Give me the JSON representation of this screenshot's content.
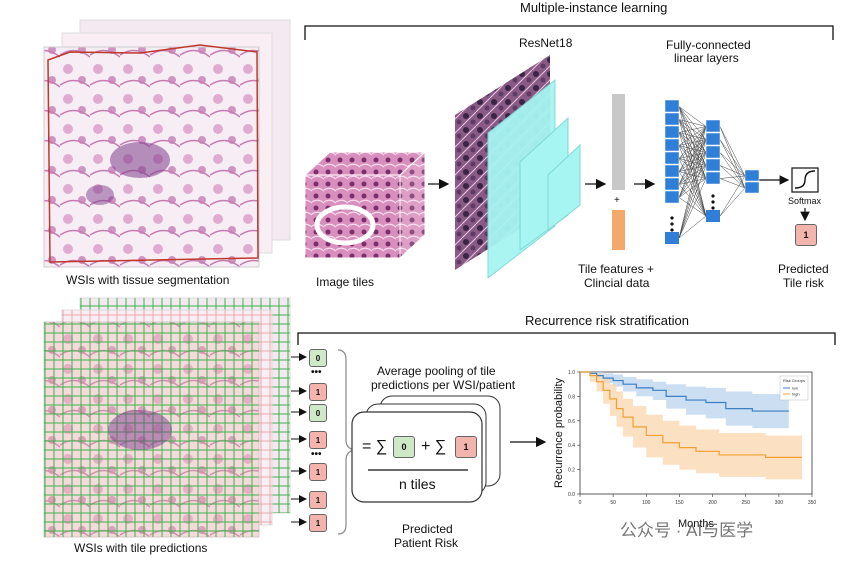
{
  "titles": {
    "mil": "Multiple-instance learning",
    "rrs": "Recurrence risk stratification"
  },
  "labels": {
    "wsi_seg": "WSIs with tissue segmentation",
    "image_tiles": "Image tiles",
    "resnet": "ResNet18",
    "fc_1": "Fully-connected",
    "fc_2": "linear layers",
    "tile_feat_1": "Tile features +",
    "tile_feat_2": "Clincial data",
    "plus": "+",
    "softmax": "Softmax",
    "pred_tile_1": "Predicted",
    "pred_tile_2": "Tile risk",
    "pred_tile_value": "1",
    "wsi_pred": "WSIs with tile predictions",
    "avg_1": "Average pooling of tile",
    "avg_2": "predictions per WSI/patient",
    "formula_eq": "= ∑",
    "formula_plus": "+ ∑",
    "formula_v0": "0",
    "formula_v1": "1",
    "n_tiles": "n tiles",
    "pred_patient_1": "Predicted",
    "pred_patient_2": "Patient Risk",
    "ellipsis": "•••",
    "watermark": "公众号 · AI与医学"
  },
  "tile_values": [
    "0",
    "1",
    "0",
    "1",
    "1",
    "1",
    "1"
  ],
  "colors": {
    "fc_blue": "#2f7fd8",
    "cnn_cyan": "#a6f5f2",
    "feat_gray": "#c8c8c8",
    "clin_orange": "#f4a86a",
    "risk_red": "#f3b4ae",
    "risk_green": "#cfe8c8",
    "km_low": "#3b7fc4",
    "km_high": "#f0a030"
  },
  "chart_data": {
    "type": "line",
    "xlabel": "Months",
    "ylabel": "Recurrence probability",
    "xlim": [
      0,
      350
    ],
    "ylim": [
      0,
      1.0
    ],
    "xticks": [
      "0",
      "50",
      "100",
      "150",
      "200",
      "250",
      "300",
      "350"
    ],
    "yticks": [
      "0.0",
      "0.2",
      "0.4",
      "0.6",
      "0.8",
      "1.0"
    ],
    "legend_title": "Risk Groups",
    "legend_position": "top-right",
    "series": [
      {
        "name": "low",
        "x": [
          0,
          15,
          25,
          35,
          50,
          65,
          85,
          110,
          130,
          160,
          190,
          220,
          260,
          315
        ],
        "y": [
          1.0,
          0.99,
          0.97,
          0.95,
          0.93,
          0.9,
          0.87,
          0.85,
          0.8,
          0.77,
          0.75,
          0.7,
          0.68,
          0.68
        ],
        "ci_low": [
          1.0,
          0.97,
          0.94,
          0.91,
          0.88,
          0.84,
          0.8,
          0.77,
          0.7,
          0.65,
          0.62,
          0.56,
          0.54,
          0.54
        ],
        "ci_high": [
          1.0,
          1.0,
          1.0,
          0.99,
          0.98,
          0.96,
          0.94,
          0.92,
          0.9,
          0.88,
          0.87,
          0.84,
          0.82,
          0.82
        ]
      },
      {
        "name": "high",
        "x": [
          0,
          15,
          25,
          35,
          45,
          55,
          65,
          80,
          100,
          125,
          150,
          175,
          210,
          280,
          335
        ],
        "y": [
          1.0,
          0.97,
          0.92,
          0.85,
          0.78,
          0.7,
          0.63,
          0.55,
          0.48,
          0.42,
          0.38,
          0.35,
          0.32,
          0.3,
          0.3
        ],
        "ci_low": [
          1.0,
          0.92,
          0.84,
          0.74,
          0.64,
          0.55,
          0.47,
          0.38,
          0.3,
          0.24,
          0.2,
          0.17,
          0.14,
          0.12,
          0.12
        ],
        "ci_high": [
          1.0,
          1.0,
          0.99,
          0.95,
          0.9,
          0.84,
          0.78,
          0.72,
          0.65,
          0.6,
          0.56,
          0.53,
          0.5,
          0.48,
          0.48
        ]
      }
    ]
  }
}
